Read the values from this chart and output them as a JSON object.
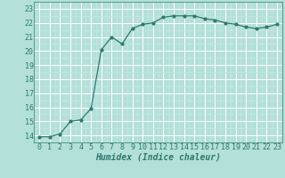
{
  "x": [
    0,
    1,
    2,
    3,
    4,
    5,
    6,
    7,
    8,
    9,
    10,
    11,
    12,
    13,
    14,
    15,
    16,
    17,
    18,
    19,
    20,
    21,
    22,
    23
  ],
  "y": [
    13.9,
    13.9,
    14.1,
    15.0,
    15.1,
    15.9,
    20.1,
    21.0,
    20.5,
    21.6,
    21.9,
    22.0,
    22.4,
    22.5,
    22.5,
    22.5,
    22.3,
    22.2,
    22.0,
    21.9,
    21.7,
    21.6,
    21.7,
    21.9
  ],
  "line_color": "#2d7a6e",
  "marker": "o",
  "marker_size": 2.0,
  "linewidth": 0.9,
  "bg_color": "#b3e0d9",
  "grid_major_color": "#ffffff",
  "grid_minor_color": "#c8e8e2",
  "xlabel": "Humidex (Indice chaleur)",
  "xlabel_fontsize": 7.0,
  "xlabel_fontstyle": "italic",
  "xlabel_fontweight": "bold",
  "ylim": [
    13.5,
    23.5
  ],
  "xlim": [
    -0.5,
    23.5
  ],
  "yticks": [
    14,
    15,
    16,
    17,
    18,
    19,
    20,
    21,
    22,
    23
  ],
  "xticks": [
    0,
    1,
    2,
    3,
    4,
    5,
    6,
    7,
    8,
    9,
    10,
    11,
    12,
    13,
    14,
    15,
    16,
    17,
    18,
    19,
    20,
    21,
    22,
    23
  ],
  "tick_fontsize": 6.0,
  "tick_color": "#2d7a6e",
  "label_color": "#2d7a6e"
}
